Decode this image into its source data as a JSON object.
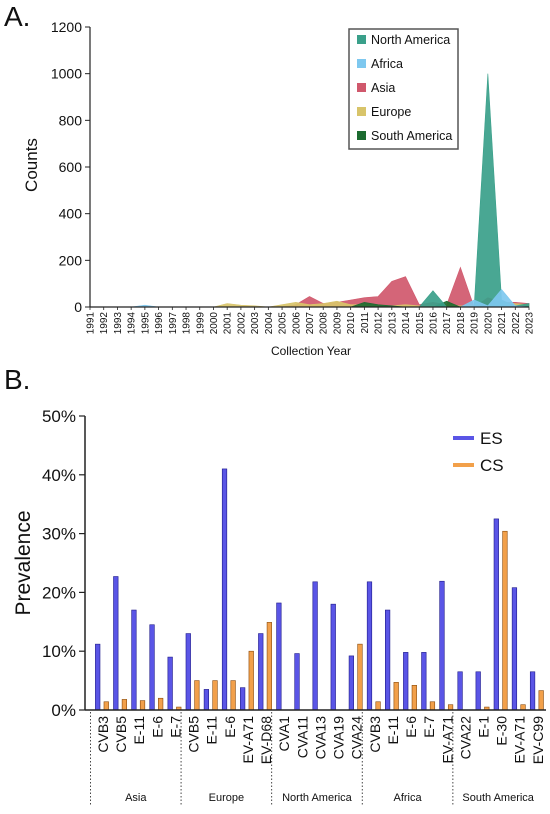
{
  "chart_data": [
    {
      "panel": "A.",
      "type": "area",
      "xlabel": "Collection Year",
      "ylabel": "Counts",
      "ylim": [
        0,
        1200
      ],
      "yticks": [
        0,
        200,
        400,
        600,
        800,
        1000,
        1200
      ],
      "x": [
        "1991",
        "1992",
        "1993",
        "1994",
        "1995",
        "1996",
        "1997",
        "1998",
        "1999",
        "2000",
        "2001",
        "2002",
        "2003",
        "2004",
        "2005",
        "2006",
        "2007",
        "2008",
        "2009",
        "2010",
        "2011",
        "2012",
        "2013",
        "2014",
        "2015",
        "2016",
        "2017",
        "2018",
        "2019",
        "2020",
        "2021",
        "2022",
        "2023"
      ],
      "legend_position": "top-right",
      "series": [
        {
          "name": "North America",
          "color": "#3aa08a",
          "values": [
            0,
            0,
            0,
            0,
            0,
            0,
            0,
            0,
            0,
            0,
            0,
            0,
            0,
            0,
            0,
            0,
            0,
            0,
            0,
            0,
            0,
            0,
            0,
            0,
            0,
            70,
            0,
            0,
            0,
            1000,
            30,
            5,
            15
          ]
        },
        {
          "name": "Africa",
          "color": "#7ec8ef",
          "values": [
            0,
            0,
            0,
            0,
            8,
            0,
            0,
            0,
            0,
            0,
            0,
            0,
            0,
            0,
            0,
            0,
            0,
            0,
            0,
            0,
            0,
            0,
            0,
            0,
            0,
            0,
            0,
            0,
            30,
            5,
            75,
            5,
            0
          ]
        },
        {
          "name": "Asia",
          "color": "#d0586c",
          "values": [
            0,
            0,
            0,
            0,
            0,
            0,
            0,
            0,
            0,
            0,
            0,
            0,
            0,
            0,
            0,
            10,
            45,
            15,
            20,
            30,
            40,
            45,
            110,
            130,
            10,
            20,
            10,
            170,
            0,
            40,
            20,
            20,
            15
          ]
        },
        {
          "name": "Europe",
          "color": "#d8c46a",
          "values": [
            0,
            0,
            0,
            0,
            0,
            0,
            0,
            0,
            0,
            0,
            15,
            8,
            5,
            0,
            10,
            20,
            10,
            15,
            25,
            10,
            10,
            5,
            5,
            10,
            5,
            5,
            10,
            5,
            5,
            5,
            20,
            15,
            10
          ]
        },
        {
          "name": "South America",
          "color": "#1c6b30",
          "values": [
            0,
            0,
            0,
            0,
            0,
            0,
            0,
            0,
            0,
            0,
            0,
            0,
            0,
            0,
            0,
            0,
            0,
            0,
            0,
            0,
            20,
            10,
            5,
            0,
            0,
            0,
            25,
            0,
            0,
            0,
            0,
            0,
            0
          ]
        }
      ]
    },
    {
      "panel": "B.",
      "type": "bar",
      "ylabel": "Prevalence",
      "ylim": [
        0,
        50
      ],
      "yticks": [
        "0%",
        "10%",
        "20%",
        "30%",
        "40%",
        "50%"
      ],
      "legend_position": "top-right",
      "series_meta": [
        {
          "name": "ES",
          "color": "#5a55e6"
        },
        {
          "name": "CS",
          "color": "#f2a04a"
        }
      ],
      "groups": [
        {
          "name": "Asia",
          "items": [
            {
              "label": "CVB3",
              "ES": 11.2,
              "CS": 1.4
            },
            {
              "label": "CVB5",
              "ES": 22.7,
              "CS": 1.8
            },
            {
              "label": "E-11",
              "ES": 17.0,
              "CS": 1.6
            },
            {
              "label": "E-6",
              "ES": 14.5,
              "CS": 2.0
            },
            {
              "label": "E-7",
              "ES": 9.0,
              "CS": 0.5
            }
          ]
        },
        {
          "name": "Europe",
          "items": [
            {
              "label": "CVB5",
              "ES": 13.0,
              "CS": 5.0
            },
            {
              "label": "E-11",
              "ES": 3.5,
              "CS": 5.0
            },
            {
              "label": "E-6",
              "ES": 41.0,
              "CS": 5.0
            },
            {
              "label": "EV-A71",
              "ES": 3.8,
              "CS": 10.0
            },
            {
              "label": "EV-D68",
              "ES": 13.0,
              "CS": 14.9
            }
          ]
        },
        {
          "name": "North America",
          "items": [
            {
              "label": "CVA1",
              "ES": 18.2,
              "CS": 0
            },
            {
              "label": "CVA11",
              "ES": 9.6,
              "CS": 0
            },
            {
              "label": "CVA13",
              "ES": 21.8,
              "CS": 0
            },
            {
              "label": "CVA19",
              "ES": 18.0,
              "CS": 0
            },
            {
              "label": "CVA24",
              "ES": 9.2,
              "CS": 11.2
            }
          ]
        },
        {
          "name": "Africa",
          "items": [
            {
              "label": "CVB3",
              "ES": 21.8,
              "CS": 1.4
            },
            {
              "label": "E-11",
              "ES": 17.0,
              "CS": 4.7
            },
            {
              "label": "E-6",
              "ES": 9.8,
              "CS": 4.2
            },
            {
              "label": "E-7",
              "ES": 9.8,
              "CS": 1.4
            },
            {
              "label": "EV-A71",
              "ES": 21.9,
              "CS": 0.9
            }
          ]
        },
        {
          "name": "South America",
          "items": [
            {
              "label": "CVA22",
              "ES": 6.5,
              "CS": 0
            },
            {
              "label": "E-1",
              "ES": 6.5,
              "CS": 0.5
            },
            {
              "label": "E-30",
              "ES": 32.5,
              "CS": 30.4
            },
            {
              "label": "EV-A71",
              "ES": 20.8,
              "CS": 0.9
            },
            {
              "label": "EV-C99",
              "ES": 6.5,
              "CS": 3.3
            }
          ]
        }
      ]
    }
  ]
}
